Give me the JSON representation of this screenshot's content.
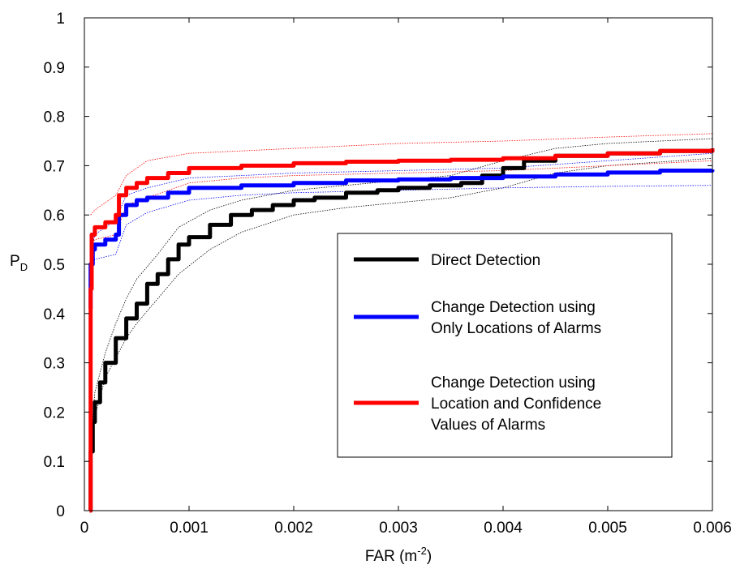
{
  "chart_data": {
    "type": "line",
    "xlabel": "FAR (m",
    "xlabel_sup": "-2",
    "xlabel_end": ")",
    "ylabel": "P",
    "ylabel_sub": "D",
    "xlim": [
      0,
      0.006
    ],
    "ylim": [
      0,
      1
    ],
    "xticks": [
      0,
      0.001,
      0.002,
      0.003,
      0.004,
      0.005,
      0.006
    ],
    "xtick_labels": [
      "0",
      "0.001",
      "0.002",
      "0.003",
      "0.004",
      "0.005",
      "0.006"
    ],
    "yticks": [
      0,
      0.1,
      0.2,
      0.3,
      0.4,
      0.5,
      0.6,
      0.7,
      0.8,
      0.9,
      1
    ],
    "ytick_labels": [
      "0",
      "0.1",
      "0.2",
      "0.3",
      "0.4",
      "0.5",
      "0.6",
      "0.7",
      "0.8",
      "0.9",
      "1"
    ],
    "grid": false,
    "legend_position": "center-right",
    "series": [
      {
        "name": "Direct Detection",
        "color": "#000000",
        "x": [
          5e-05,
          6e-05,
          8e-05,
          0.0001,
          0.00015,
          0.0002,
          0.0003,
          0.0004,
          0.0005,
          0.0006,
          0.0007,
          0.0008,
          0.0009,
          0.001,
          0.0012,
          0.0014,
          0.0016,
          0.0018,
          0.002,
          0.0022,
          0.0025,
          0.0028,
          0.003,
          0.0033,
          0.0036,
          0.0038,
          0.004,
          0.0042,
          0.0045,
          0.005,
          0.0055,
          0.006
        ],
        "y": [
          0.0,
          0.12,
          0.18,
          0.22,
          0.26,
          0.3,
          0.35,
          0.39,
          0.42,
          0.46,
          0.48,
          0.51,
          0.54,
          0.555,
          0.58,
          0.6,
          0.61,
          0.62,
          0.63,
          0.635,
          0.645,
          0.65,
          0.655,
          0.66,
          0.665,
          0.68,
          0.695,
          0.71,
          0.72,
          0.725,
          0.73,
          0.735
        ]
      },
      {
        "name": "Change Detection using Only Locations of Alarms",
        "name_lines": [
          "Change Detection using",
          "Only Locations of Alarms"
        ],
        "color": "#0000ff",
        "x": [
          5e-05,
          6e-05,
          8e-05,
          0.0001,
          0.0002,
          0.0003,
          0.00033,
          0.0004,
          0.0005,
          0.0006,
          0.0008,
          0.001,
          0.0015,
          0.002,
          0.0025,
          0.003,
          0.0035,
          0.004,
          0.0045,
          0.005,
          0.0055,
          0.006
        ],
        "y": [
          0.41,
          0.5,
          0.53,
          0.54,
          0.55,
          0.56,
          0.6,
          0.62,
          0.63,
          0.635,
          0.645,
          0.655,
          0.66,
          0.665,
          0.67,
          0.672,
          0.675,
          0.678,
          0.682,
          0.686,
          0.69,
          0.692
        ]
      },
      {
        "name": "Change Detection using Location and Confidence Values of Alarms",
        "name_lines": [
          "Change Detection using",
          "Location and Confidence",
          "Values of Alarms"
        ],
        "color": "#ff0000",
        "x": [
          5e-05,
          6e-05,
          7e-05,
          0.0001,
          0.0002,
          0.0003,
          0.00033,
          0.0004,
          0.0005,
          0.0006,
          0.0008,
          0.001,
          0.0015,
          0.002,
          0.0025,
          0.003,
          0.0035,
          0.004,
          0.0045,
          0.005,
          0.0055,
          0.006
        ],
        "y": [
          0.0,
          0.45,
          0.56,
          0.575,
          0.585,
          0.6,
          0.64,
          0.655,
          0.665,
          0.675,
          0.685,
          0.695,
          0.7,
          0.705,
          0.708,
          0.71,
          0.712,
          0.715,
          0.72,
          0.725,
          0.73,
          0.735
        ]
      }
    ],
    "bands": [
      {
        "color": "#000000",
        "upper": [
          6e-05,
          0.14,
          0.0001,
          0.24,
          0.0002,
          0.32,
          0.0003,
          0.38,
          0.0004,
          0.43,
          0.0005,
          0.47,
          0.0007,
          0.52,
          0.0009,
          0.575,
          0.0012,
          0.61,
          0.0015,
          0.63,
          0.002,
          0.65,
          0.0025,
          0.66,
          0.003,
          0.67,
          0.0035,
          0.68,
          0.004,
          0.71,
          0.0045,
          0.735,
          0.005,
          0.745,
          0.006,
          0.755
        ],
        "lower": [
          6e-05,
          0.1,
          0.0001,
          0.19,
          0.0002,
          0.27,
          0.0003,
          0.31,
          0.0004,
          0.35,
          0.0005,
          0.38,
          0.0007,
          0.43,
          0.0009,
          0.48,
          0.0012,
          0.53,
          0.0015,
          0.565,
          0.002,
          0.6,
          0.0025,
          0.615,
          0.003,
          0.625,
          0.0035,
          0.635,
          0.004,
          0.655,
          0.0045,
          0.685,
          0.005,
          0.7,
          0.006,
          0.715
        ]
      },
      {
        "color": "#0000ff",
        "upper": [
          6e-05,
          0.52,
          0.0001,
          0.56,
          0.0003,
          0.59,
          0.0004,
          0.64,
          0.0006,
          0.655,
          0.001,
          0.675,
          0.0015,
          0.68,
          0.002,
          0.685,
          0.003,
          0.69,
          0.004,
          0.695,
          0.005,
          0.71,
          0.006,
          0.725
        ],
        "lower": [
          6e-05,
          0.49,
          0.0001,
          0.51,
          0.0003,
          0.52,
          0.0004,
          0.58,
          0.0006,
          0.605,
          0.001,
          0.63,
          0.0015,
          0.64,
          0.002,
          0.645,
          0.003,
          0.65,
          0.004,
          0.655,
          0.005,
          0.658,
          0.006,
          0.66
        ]
      },
      {
        "color": "#ff0000",
        "upper": [
          6e-05,
          0.6,
          0.0001,
          0.61,
          0.0003,
          0.64,
          0.0004,
          0.68,
          0.0006,
          0.71,
          0.001,
          0.725,
          0.0015,
          0.73,
          0.002,
          0.735,
          0.003,
          0.745,
          0.004,
          0.75,
          0.005,
          0.758,
          0.006,
          0.765
        ],
        "lower": [
          6e-05,
          0.54,
          0.0001,
          0.55,
          0.0003,
          0.56,
          0.0004,
          0.62,
          0.0006,
          0.635,
          0.001,
          0.665,
          0.0015,
          0.675,
          0.002,
          0.68,
          0.003,
          0.685,
          0.004,
          0.69,
          0.005,
          0.7,
          0.006,
          0.71
        ]
      }
    ]
  }
}
